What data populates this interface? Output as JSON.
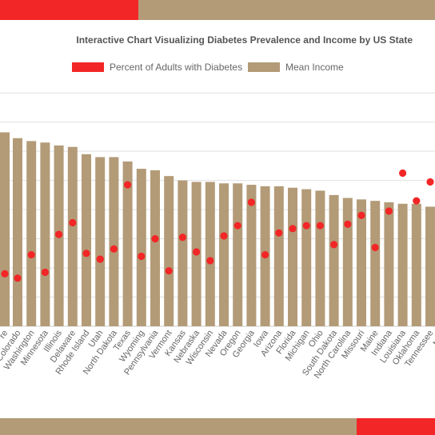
{
  "colors": {
    "accent_red": "#f22626",
    "bar_tan": "#b39b78",
    "grid": "#e0e0e0",
    "text": "#666666"
  },
  "chart_data": {
    "type": "bar",
    "title": "Interactive Chart Visualizing Diabetes Prevalence and Income by US State",
    "legend_position": "top",
    "grid": true,
    "categories": [
      "Colorado",
      "Washington",
      "Minnesota",
      "Illinois",
      "Delaware",
      "Rhode Island",
      "Utah",
      "North Dakota",
      "Texas",
      "Wyoming",
      "Pennsylvania",
      "Vermont",
      "Kansas",
      "Nebraska",
      "Wisconsin",
      "Nevada",
      "Oregon",
      "Georgia",
      "Iowa",
      "Arizona",
      "Florida",
      "Michigan",
      "Ohio",
      "South Dakota",
      "North Carolina",
      "Missouri",
      "Maine",
      "Indiana",
      "Louisiana",
      "Oklahoma",
      "Tennessee"
    ],
    "partial_categories": {
      "left": "re",
      "right": "Mon"
    },
    "series": [
      {
        "name": "Percent of Adults with Diabetes",
        "chart": "scatter",
        "color": "#f22626",
        "values": [
          3.3,
          4.9,
          3.7,
          6.3,
          7.1,
          5.0,
          4.6,
          5.3,
          9.7,
          4.8,
          6.0,
          3.8,
          6.1,
          5.1,
          4.5,
          6.2,
          6.9,
          8.5,
          4.9,
          6.4,
          6.7,
          6.9,
          6.9,
          5.6,
          7.0,
          7.6,
          5.4,
          7.9,
          10.5,
          8.6,
          9.9
        ],
        "left_edge_value": 3.6,
        "right_edge_value": 10.0
      },
      {
        "name": "Mean Income",
        "chart": "bar",
        "color": "#b39b78",
        "values": [
          12.9,
          12.7,
          12.6,
          12.4,
          12.3,
          11.8,
          11.6,
          11.6,
          11.3,
          10.8,
          10.7,
          10.3,
          10.0,
          9.9,
          9.9,
          9.8,
          9.8,
          9.7,
          9.6,
          9.6,
          9.5,
          9.4,
          9.3,
          9.0,
          8.8,
          8.7,
          8.6,
          8.5,
          8.4,
          8.4,
          8.2
        ],
        "left_edge_value": 13.3
      }
    ],
    "ylim": [
      0,
      17
    ],
    "yticks": [
      2,
      4,
      6,
      8,
      10,
      12,
      14,
      16
    ],
    "xlabel": "",
    "ylabel": ""
  }
}
